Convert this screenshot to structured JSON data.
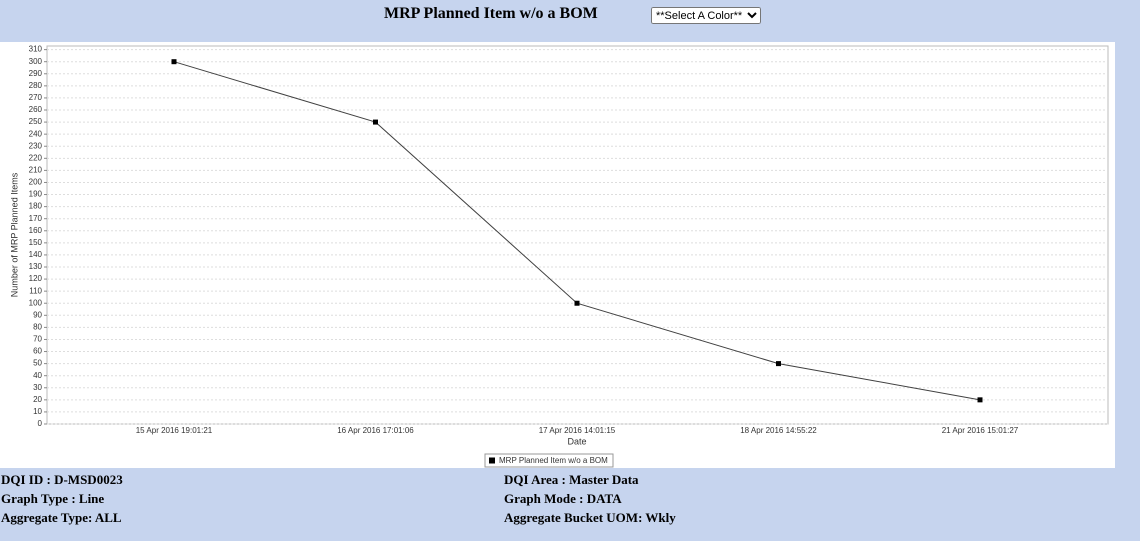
{
  "header": {
    "title": "MRP Planned Item w/o a BOM",
    "color_select": "**Select A Color**"
  },
  "chart_data": {
    "type": "line",
    "y_label": "Number of MRP Planned Items",
    "x_label": "Date",
    "categories": [
      "15 Apr 2016 19:01:21",
      "16 Apr 2016 17:01:06",
      "17 Apr 2016 14:01:15",
      "18 Apr 2016 14:55:22",
      "21 Apr 2016 15:01:27"
    ],
    "series": [
      {
        "name": "MRP Planned Item w/o a BOM",
        "color": "#404040",
        "values": [
          300,
          250,
          100,
          50,
          20
        ]
      }
    ],
    "ylim": [
      0,
      313
    ],
    "yticks": [
      0,
      10,
      20,
      30,
      40,
      50,
      60,
      70,
      80,
      90,
      100,
      110,
      120,
      130,
      140,
      150,
      160,
      170,
      180,
      190,
      200,
      210,
      220,
      230,
      240,
      250,
      260,
      270,
      280,
      290,
      300,
      310
    ],
    "grid": true,
    "legend": "bottom"
  },
  "footer": {
    "left": [
      "DQI ID : D-MSD0023",
      "Graph Type : Line",
      "Aggregate Type: ALL"
    ],
    "right": [
      "DQI Area : Master Data",
      "Graph Mode : DATA",
      "Aggregate Bucket UOM: Wkly"
    ]
  }
}
